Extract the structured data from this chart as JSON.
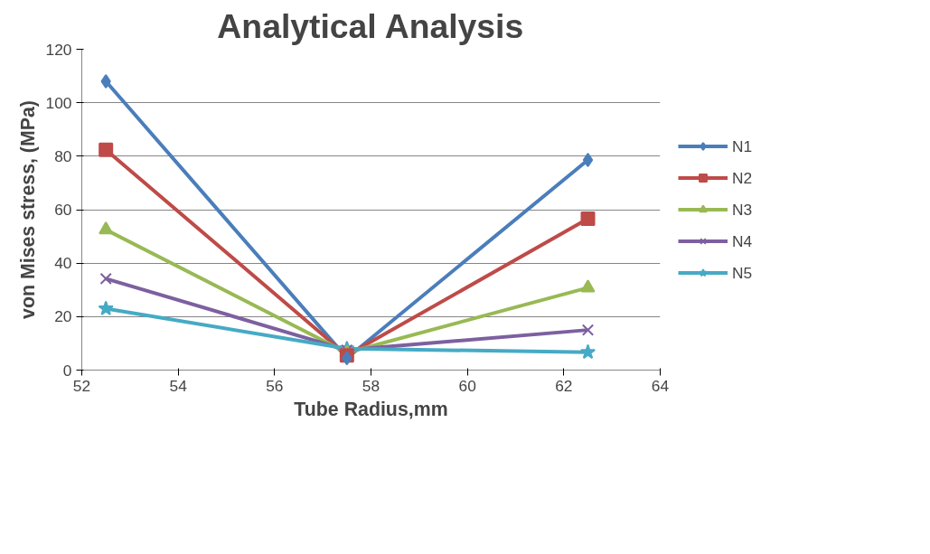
{
  "chart_data": {
    "type": "line",
    "title": "Analytical Analysis",
    "xlabel": "Tube Radius,mm",
    "ylabel": "von Mises stress, (MPa)",
    "x": [
      52.5,
      57.5,
      62.5
    ],
    "series": [
      {
        "name": "N1",
        "color": "#4a7ebb",
        "marker": "diamond",
        "values": [
          108,
          4.5,
          78.6
        ]
      },
      {
        "name": "N2",
        "color": "#be4b48",
        "marker": "square",
        "values": [
          82.4,
          5.5,
          56.6
        ]
      },
      {
        "name": "N3",
        "color": "#98b954",
        "marker": "triangle",
        "values": [
          52.5,
          6.5,
          30.8
        ]
      },
      {
        "name": "N4",
        "color": "#7d60a0",
        "marker": "cross",
        "values": [
          34.2,
          7.5,
          15
        ]
      },
      {
        "name": "N5",
        "color": "#46aac5",
        "marker": "star",
        "values": [
          23,
          8,
          6.7
        ]
      }
    ],
    "xlim": [
      52,
      64
    ],
    "xticks": [
      52,
      54,
      56,
      58,
      60,
      62,
      64
    ],
    "ylim": [
      0,
      120
    ],
    "yticks": [
      0,
      20,
      40,
      60,
      80,
      100,
      120
    ],
    "grid": "y",
    "legend": "right"
  }
}
